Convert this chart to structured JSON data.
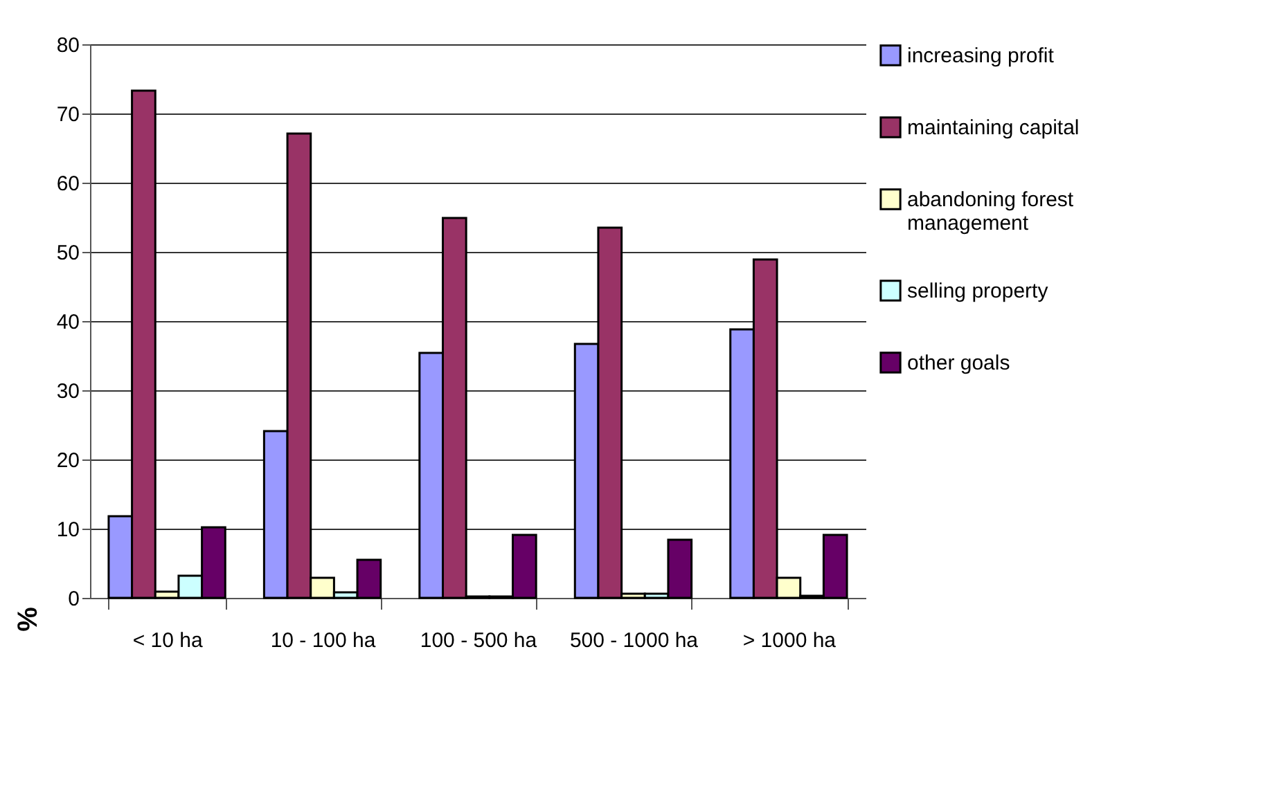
{
  "chart_data": {
    "type": "bar",
    "ylabel": "%",
    "categories": [
      "< 10 ha",
      "10 - 100 ha",
      "100 - 500 ha",
      "500 - 1000 ha",
      "> 1000 ha"
    ],
    "series": [
      {
        "name": "increasing profit",
        "color": "#9999ff",
        "values": [
          11.8,
          24.1,
          35.4,
          36.7,
          38.8
        ]
      },
      {
        "name": "maintaining capital",
        "color": "#993366",
        "values": [
          73.3,
          67.1,
          54.9,
          53.5,
          48.9
        ]
      },
      {
        "name": "abandoning forest management",
        "color": "#ffffcc",
        "values": [
          0.9,
          2.9,
          0.2,
          0.6,
          2.9
        ]
      },
      {
        "name": "selling property",
        "color": "#ccffff",
        "values": [
          3.2,
          0.8,
          0.2,
          0.6,
          0.3
        ]
      },
      {
        "name": "other goals",
        "color": "#660066",
        "values": [
          10.2,
          5.5,
          9.1,
          8.4,
          9.1
        ]
      }
    ],
    "ylim": [
      0,
      80
    ],
    "yticks": [
      0,
      10,
      20,
      30,
      40,
      50,
      60,
      70,
      80
    ],
    "grid": "y",
    "legend": "top right"
  }
}
